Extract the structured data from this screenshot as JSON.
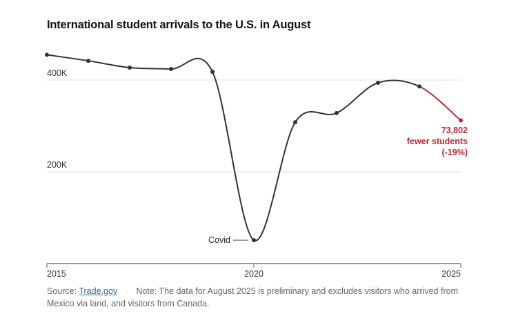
{
  "chart_data": {
    "type": "line",
    "title": "International student arrivals to the U.S. in August",
    "x": [
      2015,
      2016,
      2017,
      2018,
      2019,
      2020,
      2021,
      2022,
      2023,
      2024,
      2025
    ],
    "values": [
      455000,
      442000,
      427000,
      424000,
      418000,
      51000,
      308000,
      328000,
      394000,
      386000,
      312000
    ],
    "xticks": [
      "2015",
      "2020",
      "2025"
    ],
    "yticks": [
      {
        "value": 400000,
        "label": "400K"
      },
      {
        "value": 200000,
        "label": "200K"
      }
    ],
    "ylim": [
      0,
      480000
    ],
    "xlim": [
      2015,
      2025
    ],
    "grid": true,
    "line_color": "#333333",
    "highlight_color": "#c1272d",
    "annotations": {
      "covid": "Covid",
      "drop_line1": "73,802",
      "drop_line2": "fewer students",
      "drop_line3": "(-19%)"
    }
  },
  "source": {
    "label": "Source:",
    "link": "Trade.gov",
    "separator": "·",
    "note": "Note: The data for August 2025 is preliminary and excludes visitors who arrived from Mexico via land, and visitors from Canada."
  }
}
